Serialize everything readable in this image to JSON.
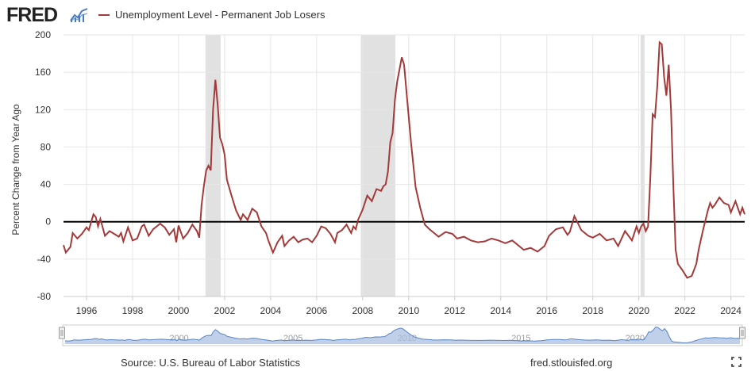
{
  "header": {
    "logo_text": "FRED",
    "legend_label": "Unemployment Level - Permanent Job Losers"
  },
  "footer": {
    "source": "Source: U.S. Bureau of Labor Statistics",
    "url": "fred.stlouisfed.org"
  },
  "colors": {
    "series": "#a33a3a",
    "recession": "#e1e1e1",
    "grid": "#e6e6e6",
    "navigator_fill": "#a9c0e0",
    "navigator_line": "#5a85c2"
  },
  "chart_data": {
    "type": "line",
    "title": "Unemployment Level - Permanent Job Losers",
    "xlabel": "",
    "ylabel": "Percent Change from Year Ago",
    "xlim": [
      1995.0,
      2024.6
    ],
    "ylim": [
      -80,
      200
    ],
    "yticks": [
      -80,
      -40,
      0,
      40,
      80,
      120,
      160,
      200
    ],
    "xticks": [
      1996,
      1998,
      2000,
      2002,
      2004,
      2006,
      2008,
      2010,
      2012,
      2014,
      2016,
      2018,
      2020,
      2022,
      2024
    ],
    "grid": true,
    "recessions": [
      [
        2001.17,
        2001.83
      ],
      [
        2007.92,
        2009.42
      ],
      [
        2020.08,
        2020.25
      ]
    ],
    "reference_line": 0,
    "navigator_labels": [
      "2000",
      "2005",
      "2010",
      "2015",
      "2020"
    ],
    "series": [
      {
        "name": "Unemployment Level - Permanent Job Losers",
        "x": [
          1995.0,
          1995.1,
          1995.3,
          1995.4,
          1995.6,
          1995.8,
          1996.0,
          1996.1,
          1996.3,
          1996.4,
          1996.5,
          1996.6,
          1996.8,
          1997.0,
          1997.2,
          1997.4,
          1997.5,
          1997.6,
          1997.8,
          1998.0,
          1998.2,
          1998.4,
          1998.5,
          1998.7,
          1998.9,
          1999.0,
          1999.2,
          1999.4,
          1999.6,
          1999.8,
          1999.9,
          2000.0,
          2000.2,
          2000.4,
          2000.6,
          2000.8,
          2000.9,
          2001.0,
          2001.1,
          2001.2,
          2001.3,
          2001.4,
          2001.5,
          2001.6,
          2001.7,
          2001.8,
          2001.9,
          2002.0,
          2002.1,
          2002.3,
          2002.5,
          2002.7,
          2002.8,
          2003.0,
          2003.2,
          2003.4,
          2003.6,
          2003.8,
          2003.9,
          2004.1,
          2004.3,
          2004.5,
          2004.6,
          2004.8,
          2005.0,
          2005.2,
          2005.4,
          2005.6,
          2005.8,
          2006.0,
          2006.2,
          2006.4,
          2006.6,
          2006.8,
          2006.9,
          2007.1,
          2007.3,
          2007.5,
          2007.6,
          2007.7,
          2007.8,
          2008.0,
          2008.2,
          2008.4,
          2008.6,
          2008.8,
          2008.9,
          2009.0,
          2009.1,
          2009.2,
          2009.3,
          2009.4,
          2009.5,
          2009.7,
          2009.8,
          2009.9,
          2010.1,
          2010.3,
          2010.5,
          2010.7,
          2010.9,
          2011.1,
          2011.3,
          2011.6,
          2011.9,
          2012.1,
          2012.4,
          2012.7,
          2013.0,
          2013.3,
          2013.6,
          2013.9,
          2014.2,
          2014.5,
          2014.8,
          2015.0,
          2015.3,
          2015.6,
          2015.9,
          2016.1,
          2016.4,
          2016.7,
          2016.9,
          2017.0,
          2017.2,
          2017.5,
          2017.8,
          2018.0,
          2018.3,
          2018.6,
          2018.9,
          2019.1,
          2019.4,
          2019.7,
          2019.9,
          2020.0,
          2020.1,
          2020.2,
          2020.3,
          2020.4,
          2020.5,
          2020.6,
          2020.7,
          2020.8,
          2020.9,
          2021.0,
          2021.1,
          2021.2,
          2021.3,
          2021.4,
          2021.5,
          2021.6,
          2021.7,
          2021.9,
          2022.1,
          2022.3,
          2022.5,
          2022.6,
          2022.8,
          2023.0,
          2023.1,
          2023.2,
          2023.3,
          2023.5,
          2023.7,
          2023.9,
          2024.0,
          2024.2,
          2024.4,
          2024.5,
          2024.6
        ],
        "values": [
          -25,
          -33,
          -27,
          -12,
          -18,
          -13,
          -6,
          -9,
          8,
          5,
          -5,
          3,
          -15,
          -10,
          -13,
          -16,
          -12,
          -21,
          -6,
          -20,
          -18,
          -5,
          -3,
          -15,
          -8,
          -6,
          -2,
          -6,
          -14,
          -8,
          -22,
          -4,
          -18,
          -12,
          -3,
          -10,
          -17,
          18,
          38,
          55,
          60,
          55,
          120,
          152,
          125,
          90,
          83,
          72,
          45,
          28,
          12,
          2,
          8,
          2,
          14,
          10,
          -5,
          -12,
          -20,
          -33,
          -22,
          -15,
          -26,
          -20,
          -16,
          -22,
          -19,
          -18,
          -22,
          -15,
          -5,
          -7,
          -13,
          -22,
          -12,
          -9,
          -3,
          -12,
          -5,
          -8,
          2,
          13,
          28,
          22,
          35,
          33,
          38,
          40,
          54,
          85,
          95,
          130,
          150,
          176,
          168,
          140,
          85,
          37,
          15,
          -3,
          -8,
          -12,
          -16,
          -11,
          -13,
          -18,
          -16,
          -20,
          -22,
          -21,
          -18,
          -20,
          -23,
          -20,
          -26,
          -30,
          -28,
          -32,
          -26,
          -15,
          -8,
          -6,
          -14,
          -11,
          6,
          -9,
          -15,
          -17,
          -13,
          -20,
          -18,
          -26,
          -10,
          -20,
          -5,
          -12,
          -5,
          -2,
          -10,
          -5,
          48,
          115,
          112,
          145,
          192,
          190,
          155,
          135,
          168,
          120,
          40,
          -30,
          -45,
          -52,
          -60,
          -58,
          -45,
          -30,
          -8,
          12,
          20,
          15,
          18,
          26,
          20,
          18,
          10,
          22,
          8,
          15,
          8
        ]
      }
    ]
  }
}
